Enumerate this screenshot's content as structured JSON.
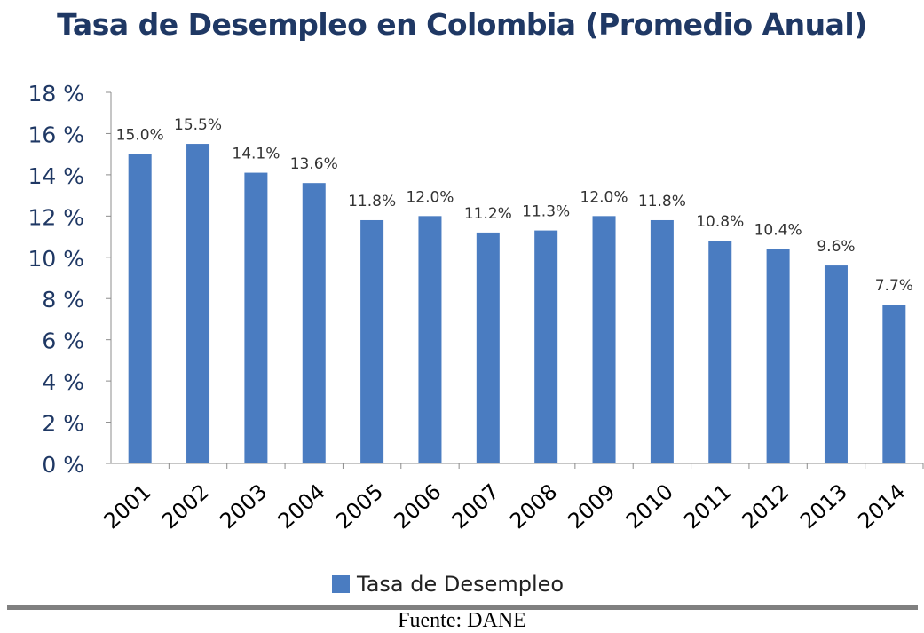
{
  "chart_data": {
    "type": "bar",
    "title": "Tasa de Desempleo en Colombia (Promedio Anual)",
    "xlabel": "",
    "ylabel": "",
    "categories": [
      "2001",
      "2002",
      "2003",
      "2004",
      "2005",
      "2006",
      "2007",
      "2008",
      "2009",
      "2010",
      "2011",
      "2012",
      "2013",
      "2014"
    ],
    "series": [
      {
        "name": "Tasa de Desempleo",
        "values": [
          15.0,
          15.5,
          14.1,
          13.6,
          11.8,
          12.0,
          11.2,
          11.3,
          12.0,
          11.8,
          10.8,
          10.4,
          9.6,
          7.7
        ],
        "data_labels": [
          "15.0%",
          "15.5%",
          "14.1%",
          "13.6%",
          "11.8%",
          "12.0%",
          "11.2%",
          "11.3%",
          "12.0%",
          "11.8%",
          "10.8%",
          "10.4%",
          "9.6%",
          "7.7%"
        ],
        "color": "#4a7cc1"
      }
    ],
    "ylim": [
      0,
      18
    ],
    "yticks": [
      0,
      2,
      4,
      6,
      8,
      10,
      12,
      14,
      16,
      18
    ],
    "ytick_labels": [
      "0 %",
      "2 %",
      "4 %",
      "6 %",
      "8 %",
      "10 %",
      "12 %",
      "14 %",
      "16 %",
      "18 %"
    ],
    "grid": false,
    "legend": "bottom",
    "legend_label": "Tasa de Desempleo"
  },
  "source": "Fuente: DANE"
}
